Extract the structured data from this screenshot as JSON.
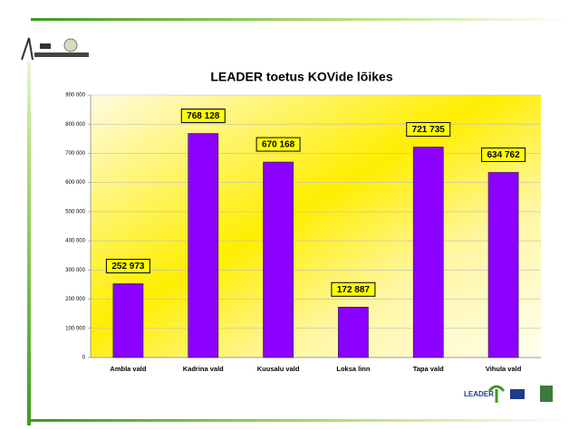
{
  "chart_data": {
    "type": "bar",
    "title": "LEADER toetus KOVide lõikes",
    "categories": [
      "Ambla vald",
      "Kadrina vald",
      "Kuusalu vald",
      "Loksa linn",
      "Tapa vald",
      "Vihula vald"
    ],
    "values": [
      252973,
      768128,
      670168,
      172887,
      721735,
      634762
    ],
    "value_labels": [
      "252 973",
      "768 128",
      "670 168",
      "172 887",
      "721 735",
      "634 762"
    ],
    "color": "#8b00ff",
    "ylim": [
      0,
      900000
    ],
    "yticks": [
      0,
      {
        "value": 100000,
        "label": "100 000"
      },
      {
        "value": 200000,
        "label": "200 000"
      },
      {
        "value": 300000,
        "label": "300 000"
      },
      {
        "value": 400000,
        "label": "400 000"
      },
      {
        "value": 500000,
        "label": "500 000"
      },
      {
        "value": 600000,
        "label": "600 000"
      },
      {
        "value": 700000,
        "label": "700 000"
      },
      {
        "value": 800000,
        "label": "800 000"
      },
      {
        "value": 900000,
        "label": "900 000"
      }
    ],
    "grid": true
  },
  "logos": {
    "leader": "LEADER"
  }
}
